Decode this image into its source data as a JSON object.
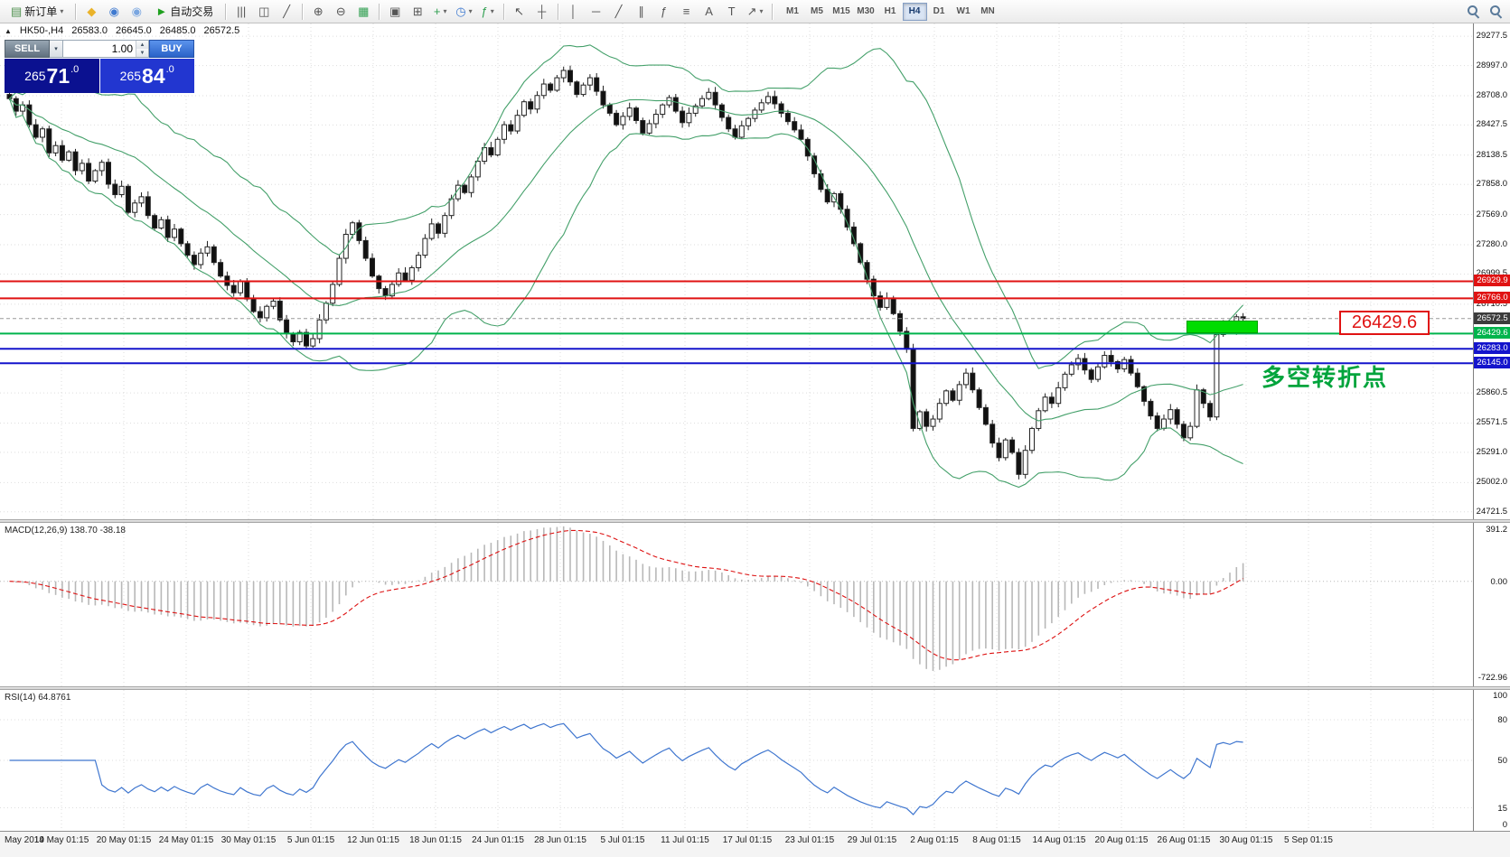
{
  "toolbar": {
    "new_order": {
      "label": "新订单"
    },
    "timeframes": {
      "items": [
        "M1",
        "M5",
        "M15",
        "M30",
        "H1",
        "H4",
        "D1",
        "W1",
        "MN"
      ],
      "active": "H4"
    },
    "groups": [
      {
        "items": [
          {
            "name": "new-order-button",
            "glyph": "▤",
            "color": "#4c8f4c",
            "label": "新订单",
            "caret": true
          }
        ]
      },
      {
        "items": [
          {
            "name": "metaeditor-icon",
            "glyph": "◆",
            "color": "#eab32a"
          },
          {
            "name": "community-icon",
            "glyph": "◉",
            "color": "#3f7ad0"
          },
          {
            "name": "notifications-icon",
            "glyph": "◉",
            "color": "#7aa6e0"
          },
          {
            "name": "autotrading-button",
            "glyph": "►",
            "color": "#1fa01f",
            "label": "自动交易"
          }
        ]
      },
      {
        "items": [
          {
            "name": "bar-chart-icon",
            "glyph": "|||"
          },
          {
            "name": "candlestick-chart-icon",
            "glyph": "◫"
          },
          {
            "name": "line-chart-icon",
            "glyph": "╱"
          }
        ]
      },
      {
        "items": [
          {
            "name": "zoom-in-icon",
            "glyph": "⊕"
          },
          {
            "name": "zoom-out-icon",
            "glyph": "⊖"
          },
          {
            "name": "strategy-tester-icon",
            "glyph": "▦",
            "color": "#2e9e4f"
          }
        ]
      },
      {
        "items": [
          {
            "name": "cascade-windows-icon",
            "glyph": "▣"
          },
          {
            "name": "tile-windows-icon",
            "glyph": "⊞"
          },
          {
            "name": "new-chart-button",
            "glyph": "+",
            "color": "#2e9e4f",
            "caret": true
          },
          {
            "name": "profiles-button",
            "glyph": "◷",
            "color": "#3f7ad0",
            "caret": true
          },
          {
            "name": "indicators-button",
            "glyph": "ƒ",
            "color": "#2e9e4f",
            "caret": true
          }
        ]
      },
      {
        "items": [
          {
            "name": "cursor-icon",
            "glyph": "↖"
          },
          {
            "name": "crosshair-icon",
            "glyph": "┼"
          }
        ]
      },
      {
        "items": [
          {
            "name": "vertical-line-icon",
            "glyph": "│"
          },
          {
            "name": "horizontal-line-icon",
            "glyph": "─"
          },
          {
            "name": "trendline-icon",
            "glyph": "╱"
          },
          {
            "name": "equidistant-channel-icon",
            "glyph": "∥"
          },
          {
            "name": "fibonacci-icon",
            "glyph": "ƒ"
          },
          {
            "name": "objects-list-icon",
            "glyph": "≡"
          },
          {
            "name": "text-icon",
            "glyph": "A"
          },
          {
            "name": "label-icon",
            "glyph": "T"
          },
          {
            "name": "shapes-button",
            "glyph": "↗",
            "caret": true
          }
        ]
      }
    ],
    "right_icons": [
      {
        "name": "search-icon",
        "glyph": "mag"
      },
      {
        "name": "find-symbol-icon",
        "glyph": "mag"
      }
    ]
  },
  "chart": {
    "title": {
      "symbol": "HK50-,H4",
      "open": "26583.0",
      "high": "26645.0",
      "low": "26485.0",
      "close": "26572.5"
    },
    "one_click": {
      "sell_label": "SELL",
      "buy_label": "BUY",
      "volume": "1.00",
      "sell_price": {
        "small": "265",
        "big": "71",
        "sup": ".0"
      },
      "buy_price": {
        "small": "265",
        "big": "84",
        "sup": ".0"
      }
    },
    "levels": [
      {
        "value": 26929.9,
        "label": "26929.9",
        "color": "#e01212",
        "style": "solid"
      },
      {
        "value": 26766.0,
        "label": "26766.0",
        "color": "#e01212",
        "style": "solid"
      },
      {
        "value": 26572.5,
        "label": "26572.5",
        "color": "#3c3c3c",
        "style": "current"
      },
      {
        "value": 26429.6,
        "label": "26429.6",
        "color": "#00b44c",
        "style": "solid"
      },
      {
        "value": 26283.0,
        "label": "26283.0",
        "color": "#1414cc",
        "style": "solid"
      },
      {
        "value": 26145.0,
        "label": "26145.0",
        "color": "#1414cc",
        "style": "solid"
      }
    ],
    "y_axis_labels": [
      "29277.5",
      "28997.0",
      "28708.0",
      "28427.5",
      "28138.5",
      "27858.0",
      "27569.0",
      "27280.0",
      "26999.5",
      "26710.5",
      "25860.5",
      "25571.5",
      "25291.0",
      "25002.0",
      "24721.5"
    ],
    "time_axis": [
      "May 2019",
      "14 May 01:15",
      "20 May 01:15",
      "24 May 01:15",
      "30 May 01:15",
      "5 Jun 01:15",
      "12 Jun 01:15",
      "18 Jun 01:15",
      "24 Jun 01:15",
      "28 Jun 01:15",
      "5 Jul 01:15",
      "11 Jul 01:15",
      "17 Jul 01:15",
      "23 Jul 01:15",
      "29 Jul 01:15",
      "2 Aug 01:15",
      "8 Aug 01:15",
      "14 Aug 01:15",
      "20 Aug 01:15",
      "26 Aug 01:15",
      "30 Aug 01:15",
      "5 Sep 01:15"
    ],
    "annotations": {
      "price_callout": "26429.6",
      "turning_point": "多空转折点"
    }
  },
  "indicators": {
    "macd": {
      "label": "MACD(12,26,9) 138.70 -38.18",
      "scale": [
        "391.2",
        "0.00",
        "-722.96"
      ]
    },
    "rsi": {
      "label": "RSI(14) 64.8761",
      "scale": [
        "100",
        "80",
        "50",
        "15",
        "0"
      ]
    }
  },
  "colors": {
    "band_green": "#44a06a",
    "bull": "#ffffff",
    "bear": "#111111",
    "wick": "#222222",
    "grid": "#dedede",
    "macd_hist": "#b8b8b8",
    "macd_signal": "#dd1111",
    "rsi_line": "#3f76cf",
    "level_red": "#e01212",
    "level_green": "#00b44c",
    "level_blue": "#1414cc",
    "current_tag": "#3c3c3c",
    "highlight_rect": "#00dc00",
    "callout_red": "#e01212",
    "note_green": "#00a43c"
  },
  "chart_data": {
    "type": "candlestick",
    "symbol": "HK50",
    "timeframe": "H4",
    "last_ohlc": {
      "open": 26583.0,
      "high": 26645.0,
      "low": 26485.0,
      "close": 26572.5
    },
    "price_range": [
      24650,
      29400
    ],
    "bollinger": {
      "period": 20,
      "deviation": 2
    },
    "macd_params": {
      "fast": 12,
      "slow": 26,
      "signal": 9,
      "last_main": 138.7,
      "last_signal": -38.18
    },
    "rsi_params": {
      "period": 14,
      "last": 64.8761
    },
    "horizontal_levels": [
      26929.9,
      26766.0,
      26572.5,
      26429.6,
      26283.0,
      26145.0
    ],
    "closes": [
      28680,
      28560,
      28620,
      28430,
      28310,
      28390,
      28160,
      28230,
      28090,
      28170,
      27990,
      28060,
      27890,
      27990,
      28070,
      27860,
      27760,
      27840,
      27590,
      27680,
      27740,
      27560,
      27440,
      27520,
      27350,
      27430,
      27290,
      27180,
      27090,
      27200,
      27260,
      27110,
      26980,
      26890,
      26820,
      26930,
      26760,
      26640,
      26580,
      26690,
      26740,
      26560,
      26430,
      26350,
      26440,
      26310,
      26380,
      26560,
      26720,
      26900,
      27150,
      27380,
      27490,
      27320,
      27150,
      26980,
      26860,
      26790,
      26900,
      27010,
      26940,
      27060,
      27180,
      27340,
      27480,
      27390,
      27560,
      27720,
      27850,
      27780,
      27930,
      28080,
      28210,
      28140,
      28290,
      28430,
      28370,
      28520,
      28650,
      28580,
      28710,
      28820,
      28760,
      28880,
      28950,
      28840,
      28720,
      28810,
      28880,
      28750,
      28620,
      28540,
      28430,
      28510,
      28590,
      28470,
      28350,
      28440,
      28530,
      28620,
      28690,
      28560,
      28450,
      28540,
      28610,
      28680,
      28740,
      28620,
      28500,
      28390,
      28310,
      28420,
      28490,
      28570,
      28640,
      28700,
      28630,
      28540,
      28460,
      28380,
      28290,
      28130,
      27960,
      27810,
      27690,
      27770,
      27620,
      27450,
      27290,
      27110,
      26950,
      26790,
      26680,
      26770,
      26620,
      26450,
      26280,
      25520,
      25680,
      25540,
      25610,
      25760,
      25880,
      25790,
      25940,
      26050,
      25890,
      25720,
      25560,
      25380,
      25240,
      25410,
      25290,
      25080,
      25310,
      25520,
      25690,
      25820,
      25760,
      25910,
      26040,
      26130,
      26190,
      26080,
      25990,
      26110,
      26220,
      26160,
      26090,
      26180,
      26050,
      25920,
      25780,
      25640,
      25520,
      25610,
      25700,
      25560,
      25430,
      25540,
      25890,
      25760,
      25630,
      26420,
      26510,
      26460,
      26590,
      26572.5
    ]
  }
}
